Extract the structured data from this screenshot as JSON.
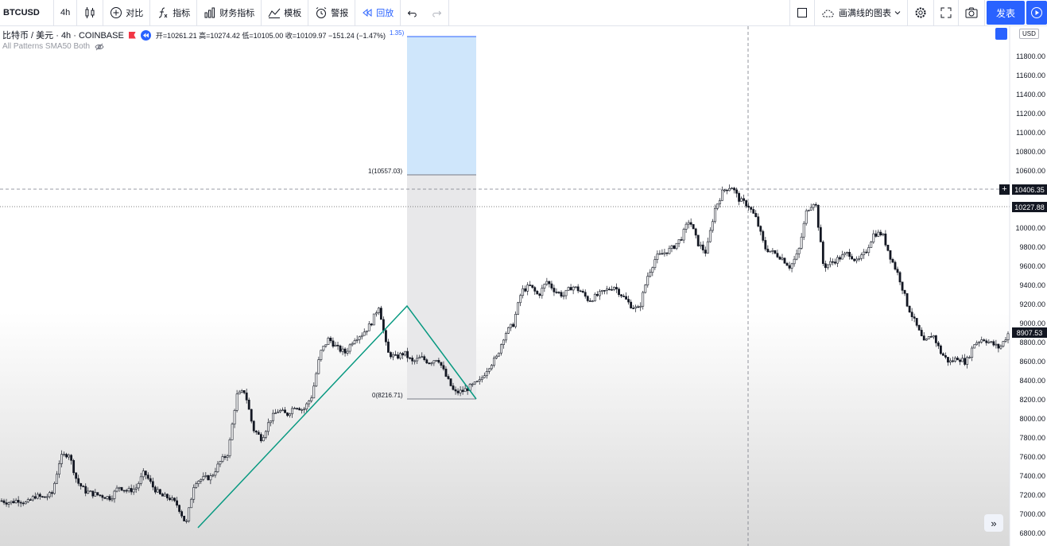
{
  "toolbar": {
    "symbol": "BTCUSD",
    "interval": "4h",
    "compare_label": "对比",
    "indicators_label": "指标",
    "financials_label": "财务指标",
    "templates_label": "模板",
    "alert_label": "警报",
    "replay_label": "回放",
    "layout_name": "画满线的图表",
    "publish_label": "发表"
  },
  "legend": {
    "symbol_name": "比特币 / 美元 · 4h · COINBASE",
    "ohlc": "开=10261.21 高=10274.42 低=10105.00 收=10109.97 −151.24 (−1.47%)",
    "indicator": "All Patterns SMA50 Both"
  },
  "axis": {
    "currency": "USD",
    "ticks": [
      "11800.00",
      "11600.00",
      "11400.00",
      "11200.00",
      "11000.00",
      "10800.00",
      "10600.00",
      "10000.00",
      "9800.00",
      "9600.00",
      "9400.00",
      "9200.00",
      "9000.00",
      "8800.00",
      "8600.00",
      "8400.00",
      "8200.00",
      "8000.00",
      "7800.00",
      "7600.00",
      "7400.00",
      "7200.00",
      "7000.00",
      "6800.00"
    ],
    "crosshair_price": "10406.35",
    "last_price": "10227.88",
    "current_price": "8907.53"
  },
  "fib": {
    "top_label": "1.35)",
    "level1_label": "1(10557.03)",
    "level0_label": "0(8216.71)"
  },
  "colors": {
    "accent": "#2962ff",
    "candle": "#131722",
    "pattern_line": "#089981",
    "fib_blue": "#cfe6fb",
    "fib_gray": "#e8e8ea"
  },
  "chart_data": {
    "type": "candlestick",
    "ylim": [
      6750,
      12150
    ],
    "key_points": [
      {
        "label": "pattern_start_low",
        "price": 6850
      },
      {
        "label": "pattern_peak",
        "price": 9200
      },
      {
        "label": "pattern_end_low",
        "price": 8220
      },
      {
        "label": "high",
        "price": 10500
      },
      {
        "label": "last_close",
        "price": 8907.53
      }
    ],
    "close_path": [
      7150,
      7130,
      7160,
      7120,
      7200,
      7180,
      7220,
      7600,
      7650,
      7350,
      7250,
      7220,
      7200,
      7180,
      7300,
      7250,
      7280,
      7450,
      7300,
      7200,
      7180,
      7100,
      6900,
      7350,
      7380,
      7400,
      7550,
      7650,
      8250,
      8300,
      7900,
      7800,
      8000,
      8100,
      8050,
      8150,
      8100,
      8250,
      8700,
      8850,
      8750,
      8700,
      8850,
      8900,
      9000,
      9200,
      8700,
      8650,
      8700,
      8600,
      8650,
      8600,
      8650,
      8450,
      8280,
      8300,
      8350,
      8400,
      8550,
      8650,
      8900,
      9000,
      9350,
      9400,
      9300,
      9450,
      9350,
      9300,
      9400,
      9350,
      9250,
      9300,
      9350,
      9400,
      9300,
      9200,
      9150,
      9500,
      9700,
      9750,
      9800,
      9900,
      10100,
      9850,
      9750,
      10200,
      10400,
      10450,
      10300,
      10250,
      10100,
      9800,
      9750,
      9700,
      9600,
      9750,
      10200,
      10300,
      9600,
      9650,
      9700,
      9750,
      9650,
      9750,
      9950,
      9950,
      9700,
      9500,
      9200,
      9000,
      8800,
      8900,
      8700,
      8600,
      8650,
      8600,
      8800,
      8850,
      8800,
      8750,
      8900
    ]
  }
}
